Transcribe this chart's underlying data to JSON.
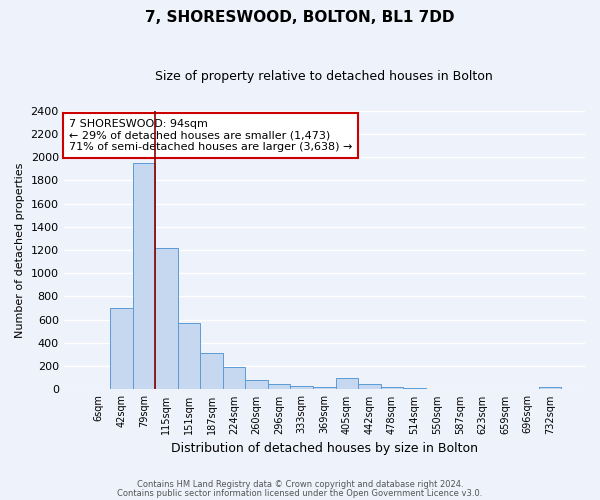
{
  "title1": "7, SHORESWOOD, BOLTON, BL1 7DD",
  "title2": "Size of property relative to detached houses in Bolton",
  "xlabel": "Distribution of detached houses by size in Bolton",
  "ylabel": "Number of detached properties",
  "bin_labels": [
    "6sqm",
    "42sqm",
    "79sqm",
    "115sqm",
    "151sqm",
    "187sqm",
    "224sqm",
    "260sqm",
    "296sqm",
    "333sqm",
    "369sqm",
    "405sqm",
    "442sqm",
    "478sqm",
    "514sqm",
    "550sqm",
    "587sqm",
    "623sqm",
    "659sqm",
    "696sqm",
    "732sqm"
  ],
  "bar_heights": [
    5,
    700,
    1950,
    1220,
    570,
    310,
    190,
    85,
    50,
    30,
    20,
    100,
    50,
    20,
    10,
    5,
    5,
    5,
    5,
    5,
    20
  ],
  "bar_color": "#c5d8f0",
  "bar_edge_color": "#5b9bd5",
  "red_line_x": 2.5,
  "red_line_color": "#880000",
  "annotation_text": "7 SHORESWOOD: 94sqm\n← 29% of detached houses are smaller (1,473)\n71% of semi-detached houses are larger (3,638) →",
  "annotation_box_color": "white",
  "annotation_box_edge_color": "#cc0000",
  "ylim": [
    0,
    2400
  ],
  "yticks": [
    0,
    200,
    400,
    600,
    800,
    1000,
    1200,
    1400,
    1600,
    1800,
    2000,
    2200,
    2400
  ],
  "footer1": "Contains HM Land Registry data © Crown copyright and database right 2024.",
  "footer2": "Contains public sector information licensed under the Open Government Licence v3.0.",
  "bg_color": "#eef2fa",
  "plot_bg_color": "#eef2fa",
  "grid_color": "#ffffff",
  "title1_fontsize": 11,
  "title2_fontsize": 9,
  "ylabel_fontsize": 8,
  "xlabel_fontsize": 9,
  "xtick_fontsize": 7,
  "ytick_fontsize": 8,
  "ann_fontsize": 8
}
